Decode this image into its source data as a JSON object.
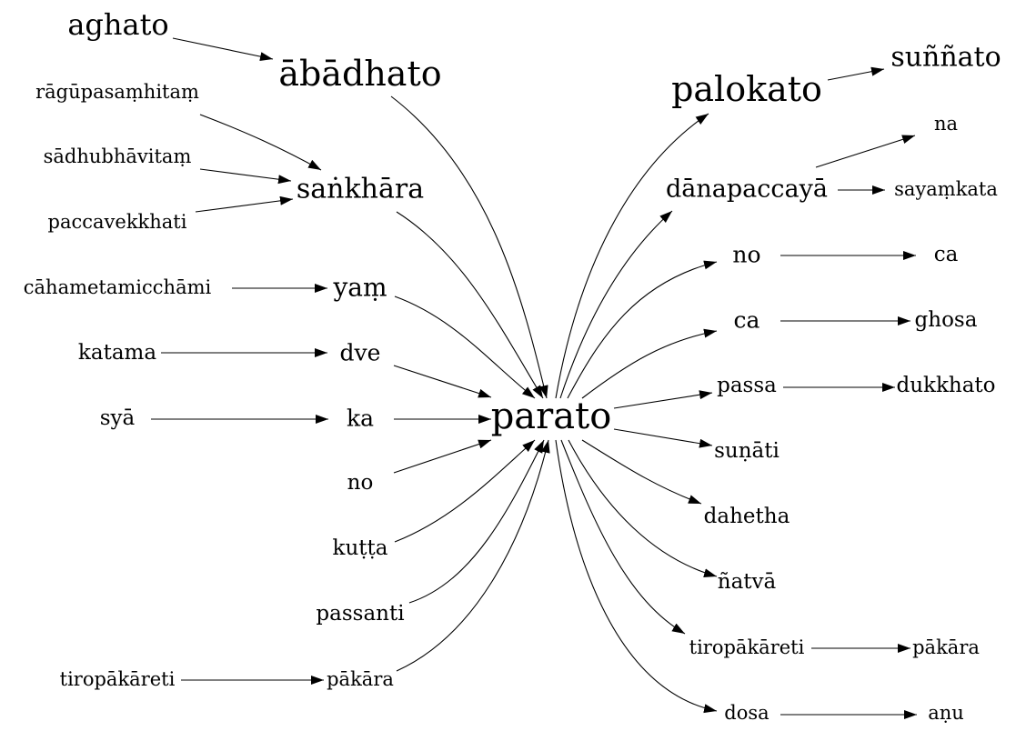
{
  "center": "parato",
  "nodes": {
    "aghato": "aghato",
    "abadhato": "ābādhato",
    "ragupasamhitam": "rāgūpasaṃhitaṃ",
    "sadhubhavitam": "sādhubhāvitaṃ",
    "paccavekkhati": "paccavekkhati",
    "sankhara": "saṅkhāra",
    "cahametamicchami": "cāhametamicchāmi",
    "yam": "yaṃ",
    "katama": "katama",
    "dve": "dve",
    "sya": "syā",
    "ka": "ka",
    "no_left": "no",
    "kutta": "kuṭṭa",
    "passanti": "passanti",
    "tiropakareti_left": "tiropākāreti",
    "pakara_left": "pākāra",
    "parato": "parato",
    "palokato": "palokato",
    "sunnato": "suññato",
    "na": "na",
    "danapaccaya": "dānapaccayā",
    "sayamkata": "sayaṃkata",
    "no_right": "no",
    "ca_1": "ca",
    "ca_2": "ca",
    "ghosa": "ghosa",
    "passa": "passa",
    "dukkhato": "dukkhato",
    "sunati": "suṇāti",
    "dahetha": "dahetha",
    "natva": "ñatvā",
    "tiropakareti_right": "tiropākāreti",
    "pakara_right": "pākāra",
    "dosa": "dosa",
    "anu": "aṇu"
  },
  "edges": [
    [
      "aghato",
      "abadhato"
    ],
    [
      "abadhato",
      "parato"
    ],
    [
      "ragupasamhitam",
      "sankhara"
    ],
    [
      "sadhubhavitam",
      "sankhara"
    ],
    [
      "paccavekkhati",
      "sankhara"
    ],
    [
      "sankhara",
      "parato"
    ],
    [
      "cahametamicchami",
      "yam"
    ],
    [
      "yam",
      "parato"
    ],
    [
      "katama",
      "dve"
    ],
    [
      "dve",
      "parato"
    ],
    [
      "sya",
      "ka"
    ],
    [
      "ka",
      "parato"
    ],
    [
      "no_left",
      "parato"
    ],
    [
      "kutta",
      "parato"
    ],
    [
      "passanti",
      "parato"
    ],
    [
      "tiropakareti_left",
      "pakara_left"
    ],
    [
      "pakara_left",
      "parato"
    ],
    [
      "parato",
      "palokato"
    ],
    [
      "palokato",
      "sunnato"
    ],
    [
      "parato",
      "danapaccaya"
    ],
    [
      "danapaccaya",
      "na"
    ],
    [
      "danapaccaya",
      "sayamkata"
    ],
    [
      "parato",
      "no_right"
    ],
    [
      "no_right",
      "ca_1"
    ],
    [
      "parato",
      "ca_2"
    ],
    [
      "ca_2",
      "ghosa"
    ],
    [
      "parato",
      "passa"
    ],
    [
      "passa",
      "dukkhato"
    ],
    [
      "parato",
      "sunati"
    ],
    [
      "parato",
      "dahetha"
    ],
    [
      "parato",
      "natva"
    ],
    [
      "parato",
      "tiropakareti_right"
    ],
    [
      "tiropakareti_right",
      "pakara_right"
    ],
    [
      "parato",
      "dosa"
    ],
    [
      "dosa",
      "anu"
    ]
  ]
}
